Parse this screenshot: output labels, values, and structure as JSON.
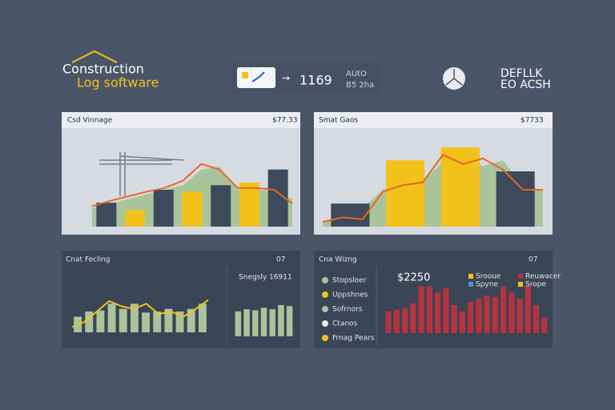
{
  "header": {
    "logo_line1": "Construction",
    "logo_line2": "Log software",
    "widget_value": "1169",
    "widget_top": "AUtO",
    "widget_bottom": "B5 2ha",
    "brand_line1": "DEFLLK",
    "brand_line2": "EO ACSH"
  },
  "panels": [
    {
      "title": "Csd Vinnage",
      "value": "$77.33"
    },
    {
      "title": "Smat Gaos",
      "value": "$7733"
    },
    {
      "title": "Cnat Fecling",
      "value": "07",
      "subtitle": "Snegsly 16911"
    },
    {
      "title": "Cna Wizng",
      "value": "07",
      "subtitle": "$2250",
      "legend": [
        "Stopsloer",
        "Uppshnes",
        "Sofrnors",
        "Ctanos",
        "Frnag Pears"
      ],
      "top_legend": [
        "Srooue",
        "Reuwacer",
        "Spyne",
        "Srope"
      ]
    }
  ],
  "charts": [
    {
      "type": "combo",
      "ylim": [
        0,
        100
      ],
      "bar_values": [
        26,
        18,
        40,
        38,
        45,
        48,
        62
      ],
      "bar_colors": [
        "#3c4a5c",
        "#f2c21b",
        "#3c4a5c",
        "#f2c21b",
        "#3c4a5c",
        "#f2c21b",
        "#3c4a5c"
      ],
      "area_values": [
        20,
        25,
        30,
        35,
        40,
        45,
        62,
        65,
        40,
        40,
        38,
        30
      ],
      "line_values": [
        22,
        28,
        33,
        38,
        42,
        50,
        68,
        62,
        42,
        42,
        40,
        25
      ],
      "area_color": "#a9c49a",
      "line_color": "#e8661f"
    },
    {
      "type": "combo",
      "ylim": [
        0,
        100
      ],
      "bar_values": [
        25,
        72,
        86,
        60
      ],
      "bar_colors": [
        "#3c4a5c",
        "#f2c21b",
        "#f2c21b",
        "#3c4a5c"
      ],
      "area_values": [
        5,
        10,
        20,
        40,
        45,
        50,
        70,
        75,
        66,
        72,
        45,
        40
      ],
      "line_values": [
        5,
        10,
        8,
        38,
        45,
        48,
        78,
        68,
        74,
        62,
        40,
        40
      ],
      "area_color": "#a9c49a",
      "line_color": "#e8661f"
    },
    {
      "type": "combo",
      "ylim": [
        0,
        100
      ],
      "bar_values": [
        30,
        40,
        42,
        55,
        45,
        55,
        38,
        40,
        45,
        40,
        45,
        55
      ],
      "bar_colors": [],
      "color": "#a9c49a",
      "line_values": [
        10,
        20,
        40,
        60,
        50,
        45,
        55,
        35,
        40,
        30,
        45,
        62
      ],
      "line_color": "#f2c21b"
    },
    {
      "type": "combo",
      "ylim": [
        0,
        100
      ],
      "bar_values": [
        48,
        52,
        50,
        55,
        52,
        60,
        58
      ],
      "bar_colors": [],
      "color": "#a9c49a"
    },
    {
      "type": "combo",
      "ylim": [
        0,
        100
      ],
      "bar_values": [
        35,
        38,
        40,
        48,
        75,
        75,
        65,
        72,
        45,
        35,
        50,
        55,
        60,
        58,
        75,
        65,
        55,
        75,
        45,
        25
      ],
      "bar_colors": [],
      "color": "#b5343f"
    }
  ]
}
